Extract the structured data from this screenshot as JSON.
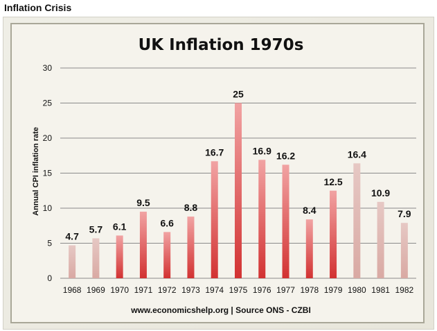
{
  "page": {
    "header": "Inflation Crisis"
  },
  "chart_data": {
    "type": "bar",
    "title": "UK Inflation 1970s",
    "xlabel": "www.economicshelp.org | Source ONS - CZBI",
    "ylabel": "Annual CPI inflation rate",
    "categories": [
      "1968",
      "1969",
      "1970",
      "1971",
      "1972",
      "1973",
      "1974",
      "1975",
      "1976",
      "1977",
      "1978",
      "1979",
      "1980",
      "1981",
      "1982"
    ],
    "values": [
      4.7,
      5.7,
      6.1,
      9.5,
      6.6,
      8.8,
      16.7,
      25,
      16.9,
      16.2,
      8.4,
      12.5,
      16.4,
      10.9,
      7.9
    ],
    "data_labels": [
      "4.7",
      "5.7",
      "6.1",
      "9.5",
      "6.6",
      "8.8",
      "16.7",
      "25",
      "16.9",
      "16.2",
      "8.4",
      "12.5",
      "16.4",
      "10.9",
      "7.9"
    ],
    "ylim": [
      0,
      30
    ],
    "yticks": [
      0,
      5,
      10,
      15,
      20,
      25,
      30
    ],
    "grid": true,
    "legend": "none",
    "colors": {
      "bar_red_top": "#f1a3a3",
      "bar_red_bottom": "#d23232",
      "bar_pale_top": "#e6c8c4",
      "bar_pale_bottom": "#d9a9a3",
      "pale_categories": [
        "1968",
        "1969",
        "1980",
        "1981",
        "1982"
      ],
      "gridline": "#8a8a8a"
    }
  }
}
